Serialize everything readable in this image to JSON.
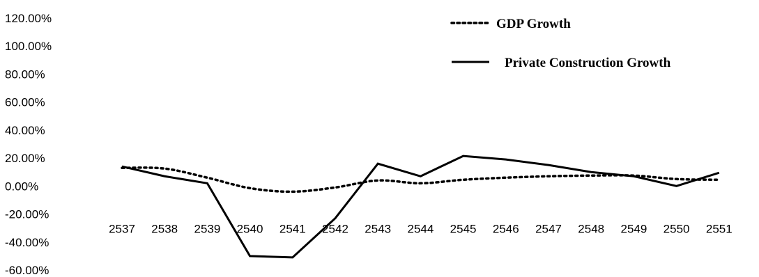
{
  "chart_data": {
    "type": "line",
    "title": "",
    "xlabel": "",
    "ylabel": "",
    "x": [
      "2537",
      "2538",
      "2539",
      "2540",
      "2541",
      "2542",
      "2543",
      "2544",
      "2545",
      "2546",
      "2547",
      "2548",
      "2549",
      "2550",
      "2551"
    ],
    "ylim": [
      -60,
      120
    ],
    "yticks": [
      "120.00%",
      "100.00%",
      "80.00%",
      "60.00%",
      "40.00%",
      "20.00%",
      "0.00%",
      "-20.00%",
      "-40.00%",
      "-60.00%"
    ],
    "grid": false,
    "legend_position": "top-right",
    "series": [
      {
        "name": "GDP Growth",
        "style": "dotted",
        "color": "#000000",
        "values": [
          13,
          12.5,
          6,
          -1.5,
          -4,
          -1,
          4,
          2,
          4.5,
          6,
          7,
          7.5,
          7.5,
          5,
          4.5
        ]
      },
      {
        "name": "Private Construction Growth",
        "style": "solid",
        "color": "#000000",
        "values": [
          14,
          7,
          2,
          -50,
          -51,
          -23,
          16,
          7,
          21.5,
          19,
          15,
          10,
          7,
          0,
          9.5
        ]
      }
    ]
  }
}
